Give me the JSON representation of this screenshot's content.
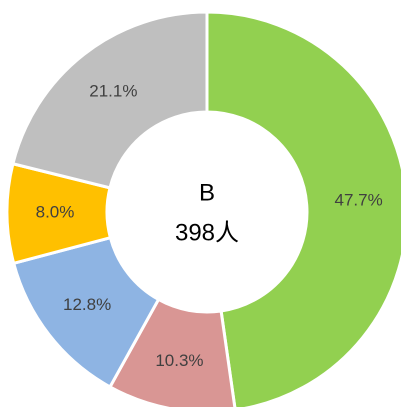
{
  "chart_data": {
    "type": "donut",
    "title": "B",
    "subtitle": "398人",
    "categories": [
      null,
      null,
      null,
      null,
      null
    ],
    "values": [
      47.7,
      10.3,
      12.8,
      8.0,
      21.1
    ],
    "value_labels": [
      "47.7%",
      "10.3%",
      "12.8%",
      "8.0%",
      "21.1%"
    ],
    "colors": [
      "#92d050",
      "#d99694",
      "#8eb4e3",
      "#ffc000",
      "#bfbfbf"
    ]
  }
}
